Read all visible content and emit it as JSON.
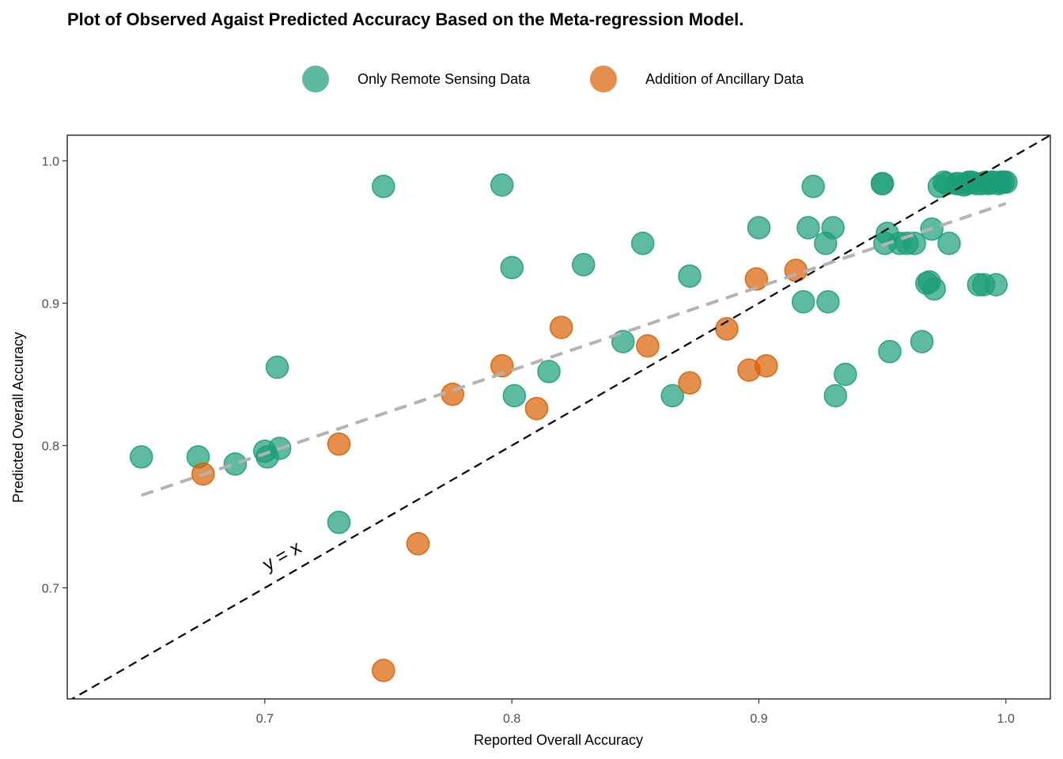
{
  "colors": {
    "remote": "#1b9e77",
    "ancillary": "#d95f02",
    "identity": "#000000",
    "trend": "#b3b3b3"
  },
  "chart_data": {
    "type": "scatter",
    "title": "Plot of Observed Agaist Predicted Accuracy Based on the Meta-regression Model.",
    "xlabel": "Reported Overall Accuracy",
    "ylabel": "Predicted Overall Accuracy",
    "xlim": [
      0.62,
      1.018
    ],
    "ylim": [
      0.622,
      1.018
    ],
    "xticks": [
      0.7,
      0.8,
      0.9,
      1.0
    ],
    "yticks": [
      0.7,
      0.8,
      0.9,
      1.0
    ],
    "xtick_labels": [
      "0.7",
      "0.8",
      "0.9",
      "1.0"
    ],
    "ytick_labels": [
      "0.7",
      "0.8",
      "0.9",
      "1.0"
    ],
    "grid": false,
    "legend_position": "top",
    "identity_label": "y = x",
    "trend_line": {
      "x": [
        0.65,
        1.0
      ],
      "y": [
        0.765,
        0.97
      ]
    },
    "series": [
      {
        "name": "Only Remote Sensing Data",
        "x": [
          0.65,
          0.673,
          0.688,
          0.7,
          0.701,
          0.706,
          0.705,
          0.73,
          0.748,
          0.796,
          0.8,
          0.801,
          0.815,
          0.829,
          0.845,
          0.853,
          0.865,
          0.872,
          0.9,
          0.918,
          0.92,
          0.922,
          0.927,
          0.928,
          0.93,
          0.931,
          0.935,
          0.95,
          0.95,
          0.951,
          0.952,
          0.953,
          0.957,
          0.96,
          0.963,
          0.966,
          0.968,
          0.969,
          0.97,
          0.971,
          0.973,
          0.975,
          0.976,
          0.977,
          0.98,
          0.981,
          0.983,
          0.984,
          0.985,
          0.986,
          0.988,
          0.989,
          0.99,
          0.991,
          0.992,
          0.993,
          0.994,
          0.995,
          0.996,
          0.997,
          0.998,
          0.999,
          1.0
        ],
        "y": [
          0.792,
          0.792,
          0.787,
          0.796,
          0.792,
          0.798,
          0.855,
          0.746,
          0.982,
          0.983,
          0.925,
          0.835,
          0.852,
          0.927,
          0.873,
          0.942,
          0.835,
          0.919,
          0.953,
          0.901,
          0.953,
          0.982,
          0.942,
          0.901,
          0.953,
          0.835,
          0.85,
          0.984,
          0.984,
          0.942,
          0.949,
          0.866,
          0.942,
          0.942,
          0.942,
          0.873,
          0.914,
          0.915,
          0.952,
          0.91,
          0.982,
          0.985,
          0.984,
          0.942,
          0.984,
          0.984,
          0.983,
          0.984,
          0.985,
          0.985,
          0.984,
          0.913,
          0.984,
          0.913,
          0.985,
          0.984,
          0.985,
          0.985,
          0.913,
          0.984,
          0.985,
          0.985,
          0.985
        ]
      },
      {
        "name": "Addition of Ancillary Data",
        "x": [
          0.675,
          0.73,
          0.748,
          0.762,
          0.776,
          0.796,
          0.81,
          0.82,
          0.855,
          0.872,
          0.887,
          0.896,
          0.899,
          0.903,
          0.915
        ],
        "y": [
          0.78,
          0.801,
          0.642,
          0.731,
          0.836,
          0.856,
          0.826,
          0.883,
          0.87,
          0.844,
          0.882,
          0.853,
          0.917,
          0.856,
          0.923
        ]
      }
    ]
  }
}
